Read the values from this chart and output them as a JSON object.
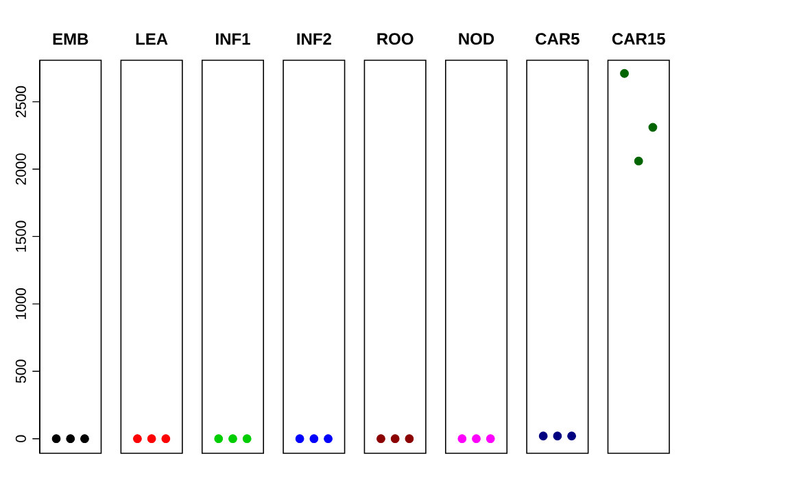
{
  "chart_data": {
    "type": "scatter",
    "categories": [
      "EMB",
      "LEA",
      "INF1",
      "INF2",
      "ROO",
      "NOD",
      "CAR5",
      "CAR15"
    ],
    "series": [
      {
        "values": [
          0,
          0,
          0,
          0,
          0,
          0,
          20,
          2710
        ],
        "colors": [
          "#000000",
          "#ff0000",
          "#00cd00",
          "#0000ff",
          "#8b0000",
          "#ff00ff",
          "#000080",
          "#006400"
        ]
      },
      {
        "values": [
          0,
          0,
          0,
          0,
          0,
          0,
          20,
          2060
        ],
        "colors": [
          "#000000",
          "#ff0000",
          "#00cd00",
          "#0000ff",
          "#8b0000",
          "#ff00ff",
          "#000080",
          "#006400"
        ]
      },
      {
        "values": [
          0,
          0,
          0,
          0,
          0,
          0,
          20,
          2310
        ],
        "colors": [
          "#000000",
          "#ff0000",
          "#00cd00",
          "#0000ff",
          "#8b0000",
          "#ff00ff",
          "#000080",
          "#006400"
        ]
      }
    ],
    "ylim": [
      -108,
      2808
    ],
    "yticks": [
      0,
      500,
      1000,
      1500,
      2000,
      2500
    ]
  }
}
